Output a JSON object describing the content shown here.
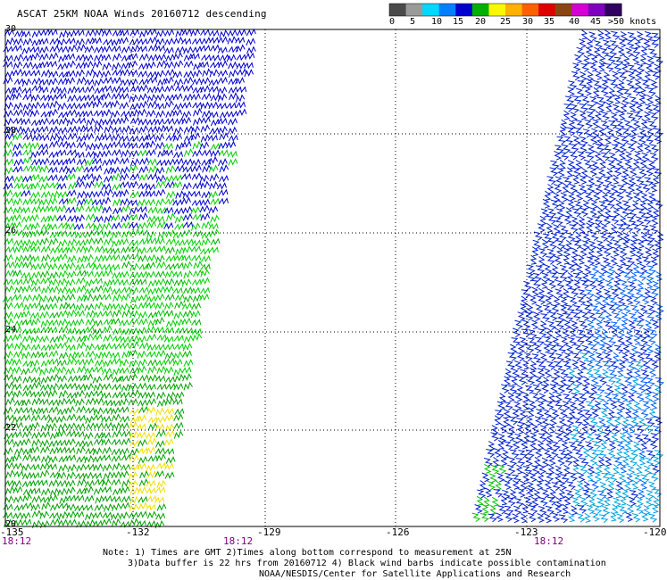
{
  "title": "ASCAT 25KM NOAA Winds 20160712 descending",
  "color_scale": {
    "labels": [
      "0",
      "5",
      "10",
      "15",
      "20",
      "25",
      "30",
      "35",
      "40",
      "45",
      ">50 knots"
    ],
    "colors": [
      "#4a4a4a",
      "#9a9a9a",
      "#00d8ff",
      "#0080ff",
      "#0000d0",
      "#00b000",
      "#f8f800",
      "#ffb000",
      "#ff6000",
      "#e00000",
      "#8b4513",
      "#d600d6",
      "#8000c0",
      "#300060"
    ]
  },
  "map": {
    "lon_labels": [
      "-135",
      "-132",
      "-129",
      "-126",
      "-123",
      "-120"
    ],
    "lat_labels": [
      "30",
      "28",
      "26",
      "24",
      "22",
      "20"
    ],
    "time_labels": [
      "18:12",
      "18:12",
      "18:12"
    ],
    "swaths": [
      {
        "side": "west",
        "dominant_colors": [
          "#0000d0",
          "#00d000",
          "#00b000",
          "#f8f800"
        ]
      },
      {
        "side": "east",
        "dominant_colors": [
          "#0000d0",
          "#0040ff",
          "#00a0ff",
          "#00b000"
        ]
      }
    ]
  },
  "notes": [
    "Note: 1) Times are GMT 2)Times along bottom correspond to measurement at 25N",
    "3)Data buffer is 22 hrs from 20160712 4) Black wind barbs indicate possible contamination",
    "NOAA/NESDIS/Center for Satellite Applications and Research"
  ]
}
